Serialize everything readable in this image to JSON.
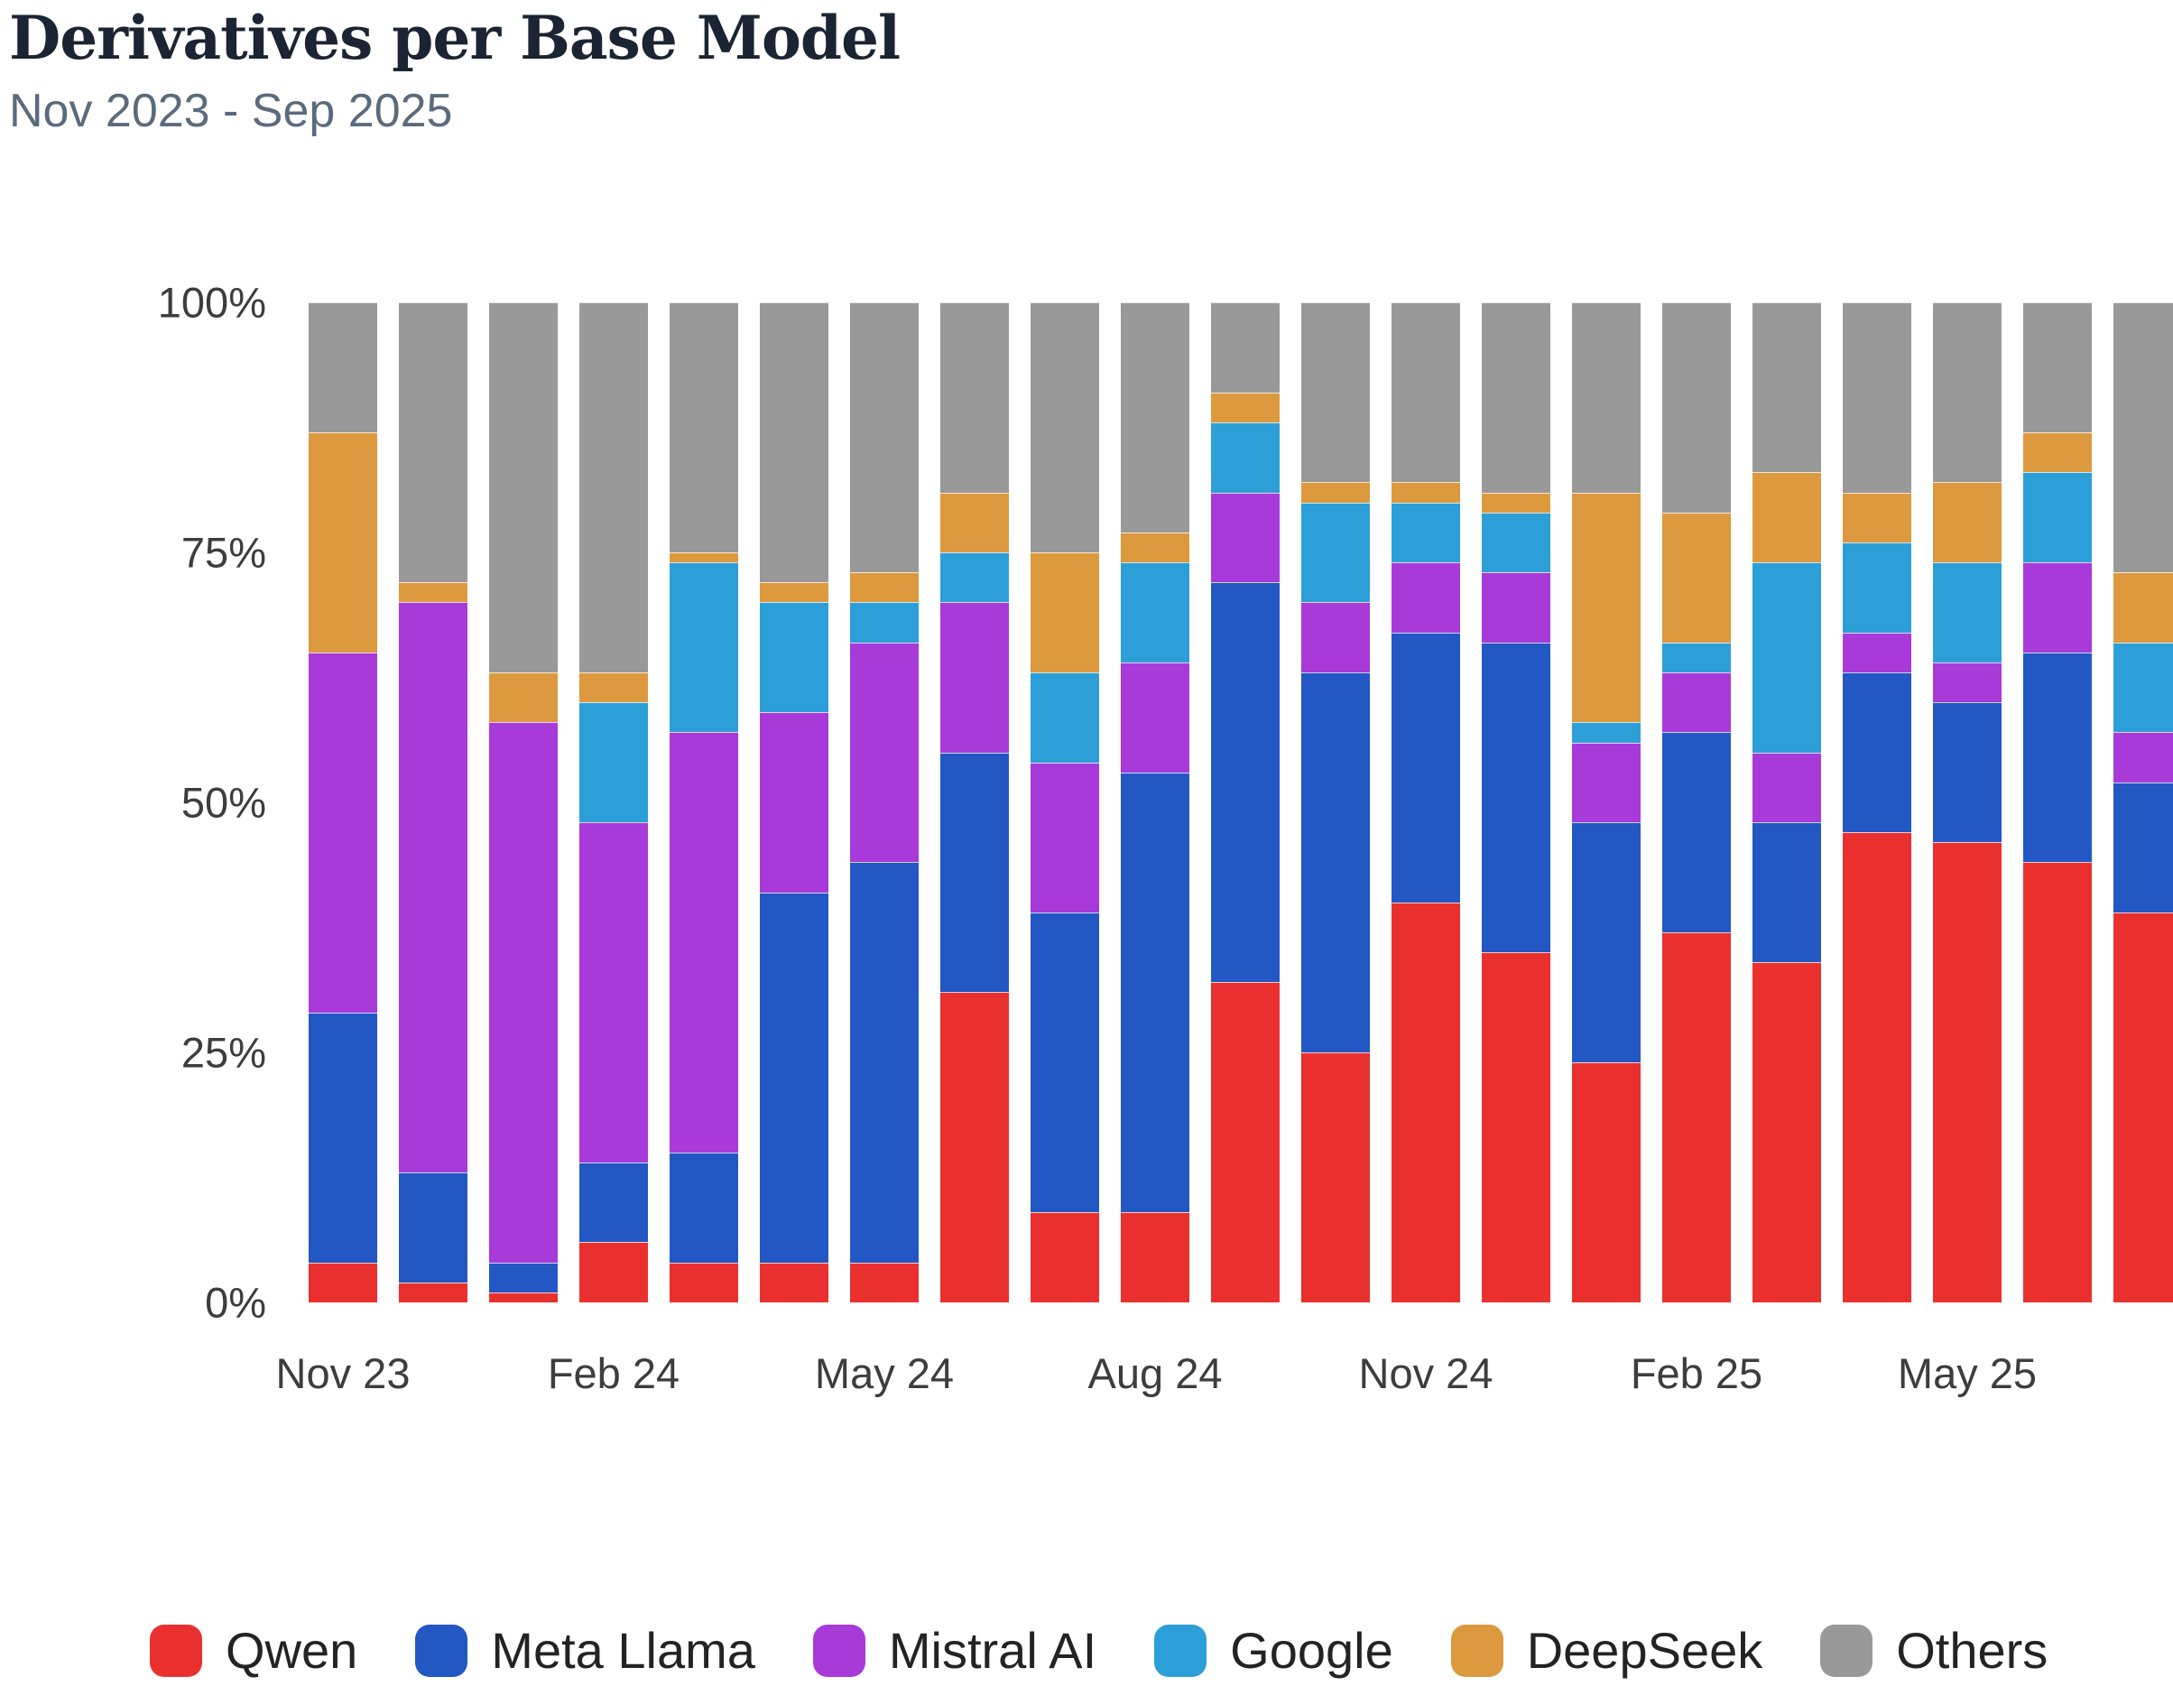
{
  "header": {
    "title": "Derivatives per Base Model",
    "subtitle": "Nov 2023 - Sep 2025"
  },
  "chart_data": {
    "type": "bar",
    "variant": "stacked-100-percent",
    "title": "Derivatives per Base Model",
    "subtitle": "Nov 2023 - Sep 2025",
    "ylabel": "",
    "xlabel": "",
    "ylim": [
      0,
      100
    ],
    "grid": false,
    "legend_position": "bottom",
    "categories": [
      "Nov 23",
      "Dec 23",
      "Jan 24",
      "Feb 24",
      "Mar 24",
      "Apr 24",
      "May 24",
      "Jun 24",
      "Jul 24",
      "Aug 24",
      "Sep 24",
      "Oct 24",
      "Nov 24",
      "Dec 24",
      "Jan 25",
      "Feb 25",
      "Mar 25",
      "Apr 25",
      "May 25",
      "Jun 25",
      "Jul 25"
    ],
    "note": "values are percent of total derivatives per month; last bar clipped at right edge of viewport",
    "series": [
      {
        "name": "Qwen",
        "color": "#ea302e",
        "values": [
          4,
          2,
          1,
          6,
          4,
          4,
          4,
          31,
          9,
          9,
          32,
          25,
          40,
          35,
          24,
          37,
          34,
          47,
          46,
          44,
          39
        ]
      },
      {
        "name": "Meta Llama",
        "color": "#2257c4",
        "values": [
          25,
          11,
          3,
          8,
          11,
          37,
          40,
          24,
          30,
          44,
          40,
          38,
          27,
          31,
          24,
          20,
          14,
          16,
          14,
          21,
          13
        ]
      },
      {
        "name": "Mistral AI",
        "color": "#a83ad9",
        "values": [
          36,
          57,
          54,
          34,
          42,
          18,
          22,
          15,
          15,
          11,
          9,
          7,
          7,
          7,
          8,
          6,
          7,
          4,
          4,
          9,
          5
        ]
      },
      {
        "name": "Google",
        "color": "#2d9fd8",
        "values": [
          0,
          0,
          0,
          12,
          17,
          11,
          4,
          5,
          9,
          10,
          7,
          10,
          6,
          6,
          2,
          3,
          19,
          9,
          10,
          9,
          9
        ]
      },
      {
        "name": "DeepSeek",
        "color": "#dd993e",
        "values": [
          22,
          2,
          5,
          3,
          1,
          2,
          3,
          6,
          12,
          3,
          3,
          2,
          2,
          2,
          23,
          13,
          9,
          5,
          8,
          4,
          7
        ]
      },
      {
        "name": "Others",
        "color": "#999999",
        "values": [
          13,
          28,
          37,
          37,
          25,
          28,
          27,
          19,
          25,
          23,
          9,
          18,
          18,
          19,
          19,
          21,
          17,
          19,
          18,
          13,
          27
        ]
      }
    ],
    "y_ticks": [
      {
        "label": "100%",
        "value": 100
      },
      {
        "label": "75%",
        "value": 75
      },
      {
        "label": "50%",
        "value": 50
      },
      {
        "label": "25%",
        "value": 25
      },
      {
        "label": "0%",
        "value": 0
      }
    ],
    "x_ticks": [
      {
        "label": "Nov 23",
        "bar_index": 0
      },
      {
        "label": "Feb 24",
        "bar_index": 3
      },
      {
        "label": "May 24",
        "bar_index": 6
      },
      {
        "label": "Aug 24",
        "bar_index": 9
      },
      {
        "label": "Nov 24",
        "bar_index": 12
      },
      {
        "label": "Feb 25",
        "bar_index": 15
      },
      {
        "label": "May 25",
        "bar_index": 18
      }
    ]
  }
}
